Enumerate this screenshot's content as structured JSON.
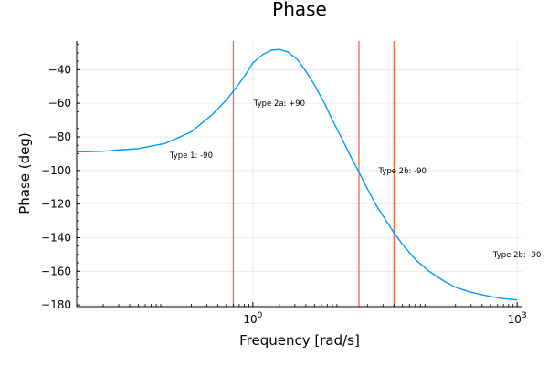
{
  "chart_data": {
    "type": "line",
    "title": "Phase",
    "xlabel": "Frequency [rad/s]",
    "ylabel": "Phase (deg)",
    "xscale": "log",
    "xlim": [
      0.01,
      1150
    ],
    "ylim": [
      -181,
      -23
    ],
    "grid": true,
    "legend": "none",
    "x_ticks": [
      {
        "value": 1,
        "base": "10",
        "exp": "0"
      },
      {
        "value": 1000,
        "base": "10",
        "exp": "3"
      }
    ],
    "y_ticks": [
      {
        "value": -40,
        "label": "−40"
      },
      {
        "value": -60,
        "label": "−60"
      },
      {
        "value": -80,
        "label": "−80"
      },
      {
        "value": -100,
        "label": "−100"
      },
      {
        "value": -120,
        "label": "−120"
      },
      {
        "value": -140,
        "label": "−140"
      },
      {
        "value": -160,
        "label": "−160"
      },
      {
        "value": -180,
        "label": "−180"
      }
    ],
    "series": [
      {
        "color": "#009AFA",
        "x": [
          0.01,
          0.02,
          0.05,
          0.1,
          0.2,
          0.35,
          0.5,
          0.65,
          0.8,
          1.0,
          1.3,
          1.6,
          2.0,
          2.5,
          3.2,
          4.0,
          5.0,
          6.5,
          8.0,
          10,
          13,
          16,
          20,
          25,
          30,
          40,
          50,
          70,
          100,
          150,
          200,
          300,
          500,
          700,
          1000
        ],
        "y": [
          -89,
          -88.5,
          -87,
          -84,
          -77,
          -66.5,
          -58,
          -50.5,
          -44,
          -36,
          -31,
          -28.5,
          -28,
          -29.5,
          -34,
          -41,
          -49,
          -60,
          -70,
          -80,
          -92,
          -101,
          -111,
          -120.5,
          -127,
          -137,
          -144,
          -153,
          -160,
          -166,
          -169.5,
          -172.5,
          -175,
          -176.3,
          -177
        ]
      }
    ],
    "vlines": {
      "color": "#E26F46",
      "x": [
        0.6,
        16,
        40
      ]
    },
    "annotations": [
      {
        "text": "Type 1: -90",
        "x": 0.2,
        "y": -91
      },
      {
        "text": "Type 2a: +90",
        "x": 2,
        "y": -60
      },
      {
        "text": "Type 2b: -90",
        "x": 50,
        "y": -100
      },
      {
        "text": "Type 2b: -90",
        "x": 1000,
        "y": -150
      }
    ]
  }
}
